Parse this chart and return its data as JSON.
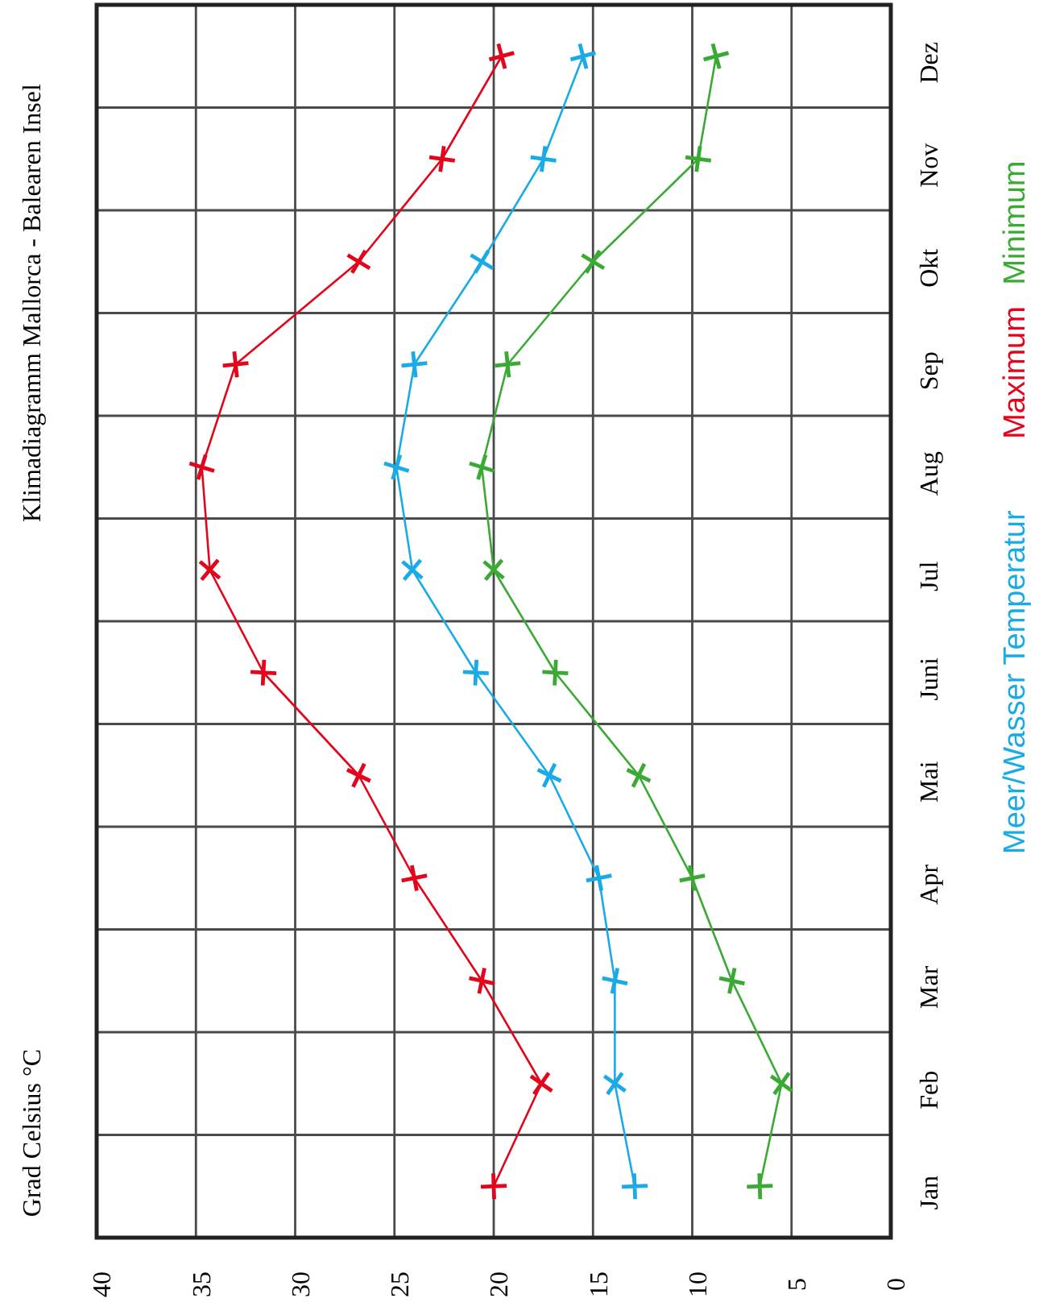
{
  "chart_data": {
    "type": "line",
    "orientation": "horizontal",
    "title": "Klimadiagramm Mallorca - Balearen Insel",
    "annotations": [
      "Grad Celsius °C"
    ],
    "categories": [
      "Dez",
      "Nov",
      "Okt",
      "Sep",
      "Aug",
      "Jul",
      "Juni",
      "Mai",
      "Apr",
      "Mar",
      "Feb",
      "Jan"
    ],
    "series": [
      {
        "name": "Meer/Wasser Temperatur",
        "color": "#1aabe6",
        "values": [
          15.5,
          17.5,
          20.6,
          24,
          24.9,
          24.1,
          20.9,
          17.2,
          14.7,
          13.9,
          13.9,
          12.9
        ]
      },
      {
        "name": "Maximum",
        "color": "#e3051b",
        "values": [
          19.6,
          22.6,
          26.8,
          33,
          34.7,
          34.3,
          31.6,
          26.8,
          24,
          20.6,
          17.6,
          20
        ]
      },
      {
        "name": "Minimum",
        "color": "#3aaa35",
        "values": [
          8.8,
          9.7,
          15,
          19.3,
          20.6,
          20,
          16.9,
          12.7,
          10,
          8,
          5.5,
          6.6
        ]
      }
    ],
    "xlim": [
      40,
      0
    ],
    "xticks": [
      40,
      35,
      30,
      25,
      20,
      15,
      10,
      5,
      0
    ],
    "grid": true,
    "legend": "right",
    "marker": "cross",
    "line_style": "solid"
  }
}
